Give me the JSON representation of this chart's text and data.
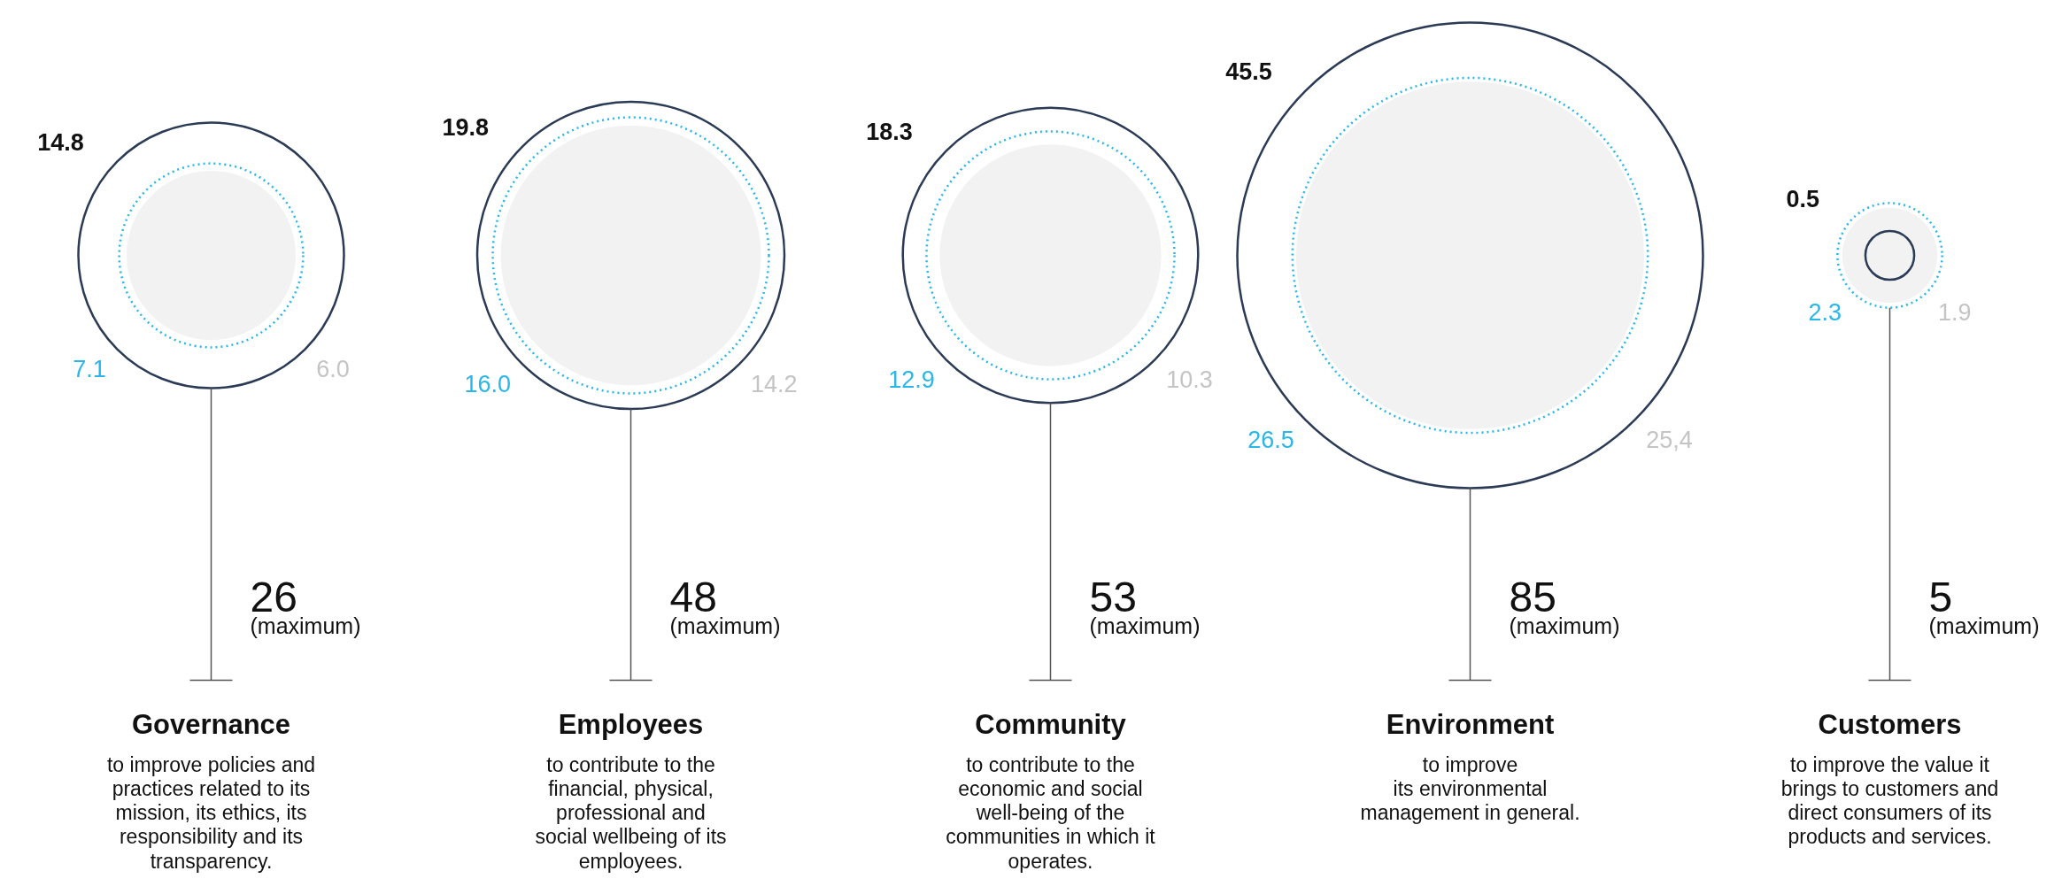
{
  "chart_data": {
    "type": "other",
    "data_labels": true,
    "categories": [
      "Governance",
      "Employees",
      "Community",
      "Environment",
      "Customers"
    ],
    "series": [
      {
        "color": "#2b3a55",
        "values": [
          14.8,
          19.8,
          18.3,
          45.5,
          0.5
        ],
        "value_labels": [
          "14.8",
          "19.8",
          "18.3",
          "45.5",
          "0.5"
        ]
      },
      {
        "color": "#29b6e8",
        "line_style": "dotted",
        "values": [
          7.1,
          16.0,
          12.9,
          26.5,
          2.3
        ],
        "value_labels": [
          "7.1",
          "16.0",
          "12.9",
          "26.5",
          "2.3"
        ]
      },
      {
        "color": "#f2f2f2",
        "values": [
          6.0,
          14.2,
          10.3,
          25.4,
          1.9
        ],
        "value_labels": [
          "6.0",
          "14.2",
          "10.3",
          "25,4",
          "1.9"
        ]
      },
      {
        "name": "(maximum)",
        "color": "#111111",
        "values": [
          26,
          48,
          53,
          85,
          5
        ]
      }
    ],
    "annotations": [
      "to improve policies and\npractices related to its\nmission, its ethics, its\nresponsibility and its\ntransparency.",
      "to contribute to the\nfinancial, physical,\nprofessional and\nsocial wellbeing of its\nemployees.",
      "to contribute to the\neconomic and social\nwell-being of the\ncommunities in which it\noperates.",
      "to improve\nits environmental\nmanagement in general.",
      "to improve the value it\nbrings to customers and\ndirect consumers of its\nproducts and services."
    ]
  }
}
